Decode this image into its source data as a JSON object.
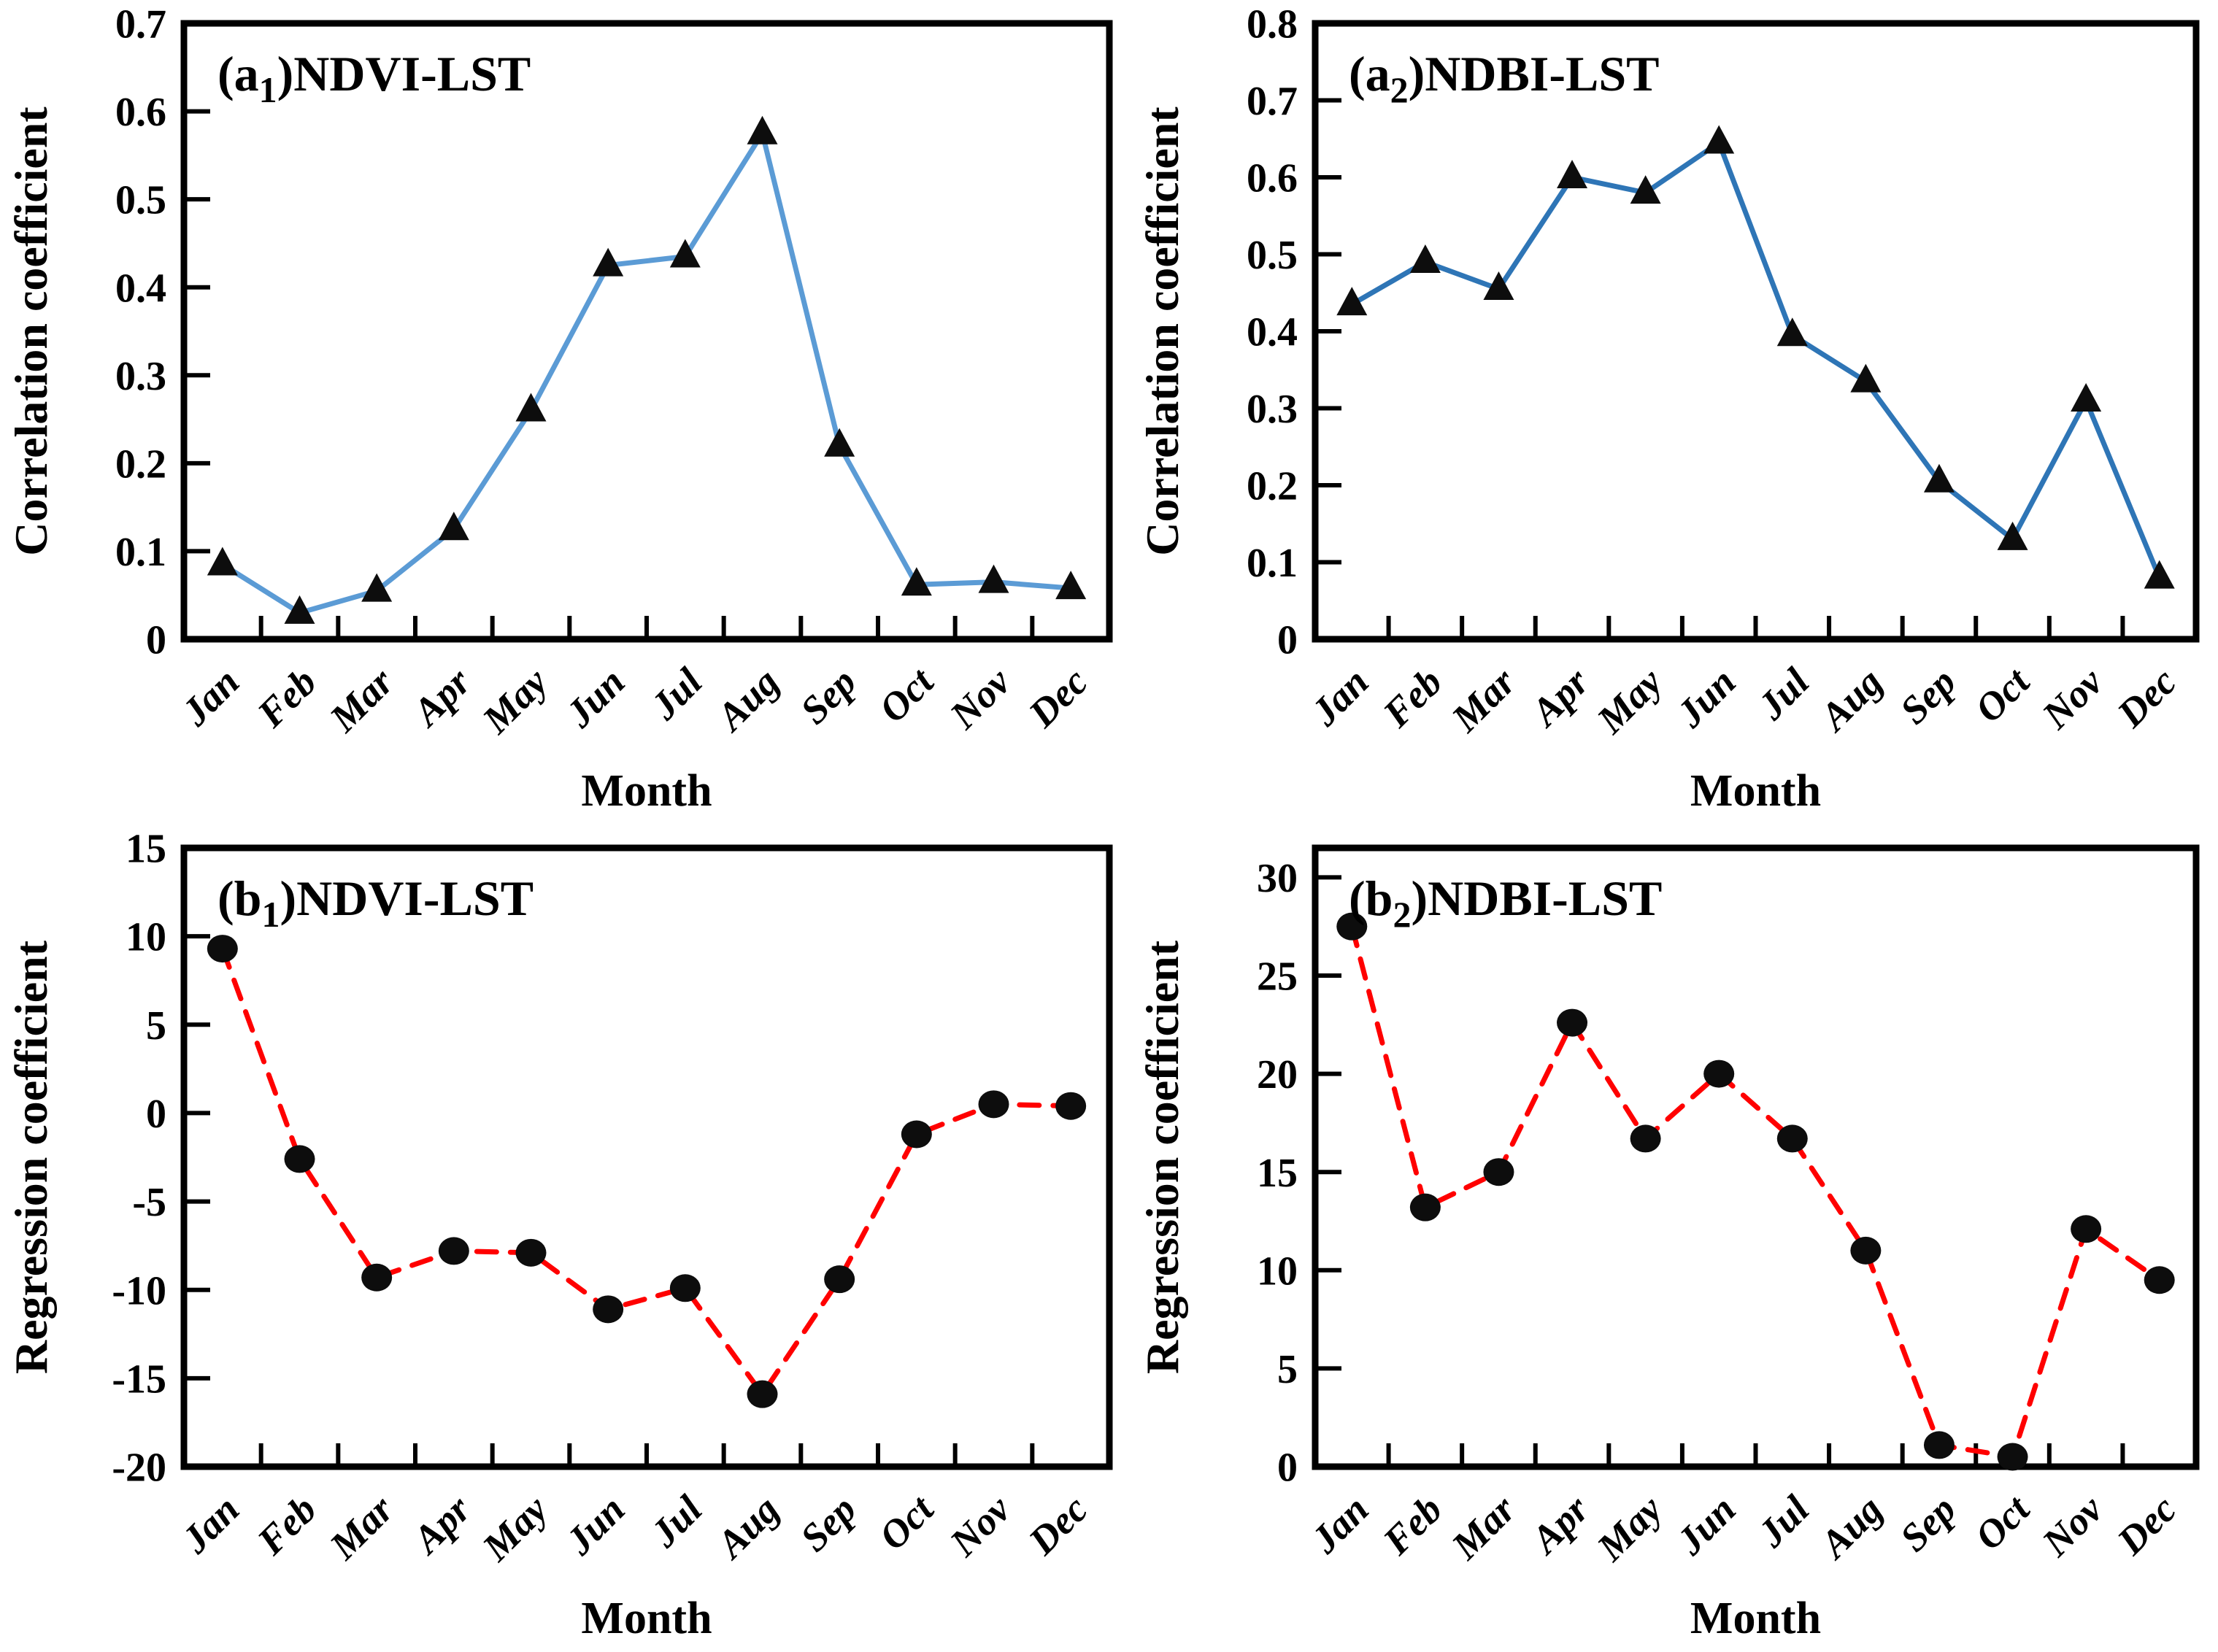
{
  "figure": {
    "xlabel": "Month",
    "months": [
      "Jan",
      "Feb",
      "Mar",
      "Apr",
      "May",
      "Jun",
      "Jul",
      "Aug",
      "Sep",
      "Oct",
      "Nov",
      "Dec"
    ]
  },
  "colors": {
    "line_blue_light": "#5B9BD5",
    "line_blue_dark": "#2E75B6",
    "line_red": "#FF0000",
    "marker_black": "#0d0d0d",
    "axis_black": "#000000"
  },
  "chart_data": [
    {
      "id": "a1",
      "type": "line",
      "panel": {
        "prefix": "(a",
        "sub": "1",
        "suffix": ")NDVI-LST"
      },
      "title": "(a1)NDVI-LST",
      "xlabel": "Month",
      "ylabel": "Correlation coefficient",
      "ylim": [
        0,
        0.7
      ],
      "ytick_values": [
        0,
        0.1,
        0.2,
        0.3,
        0.4,
        0.5,
        0.6,
        0.7
      ],
      "ytick_labels": [
        "0",
        "0.1",
        "0.2",
        "0.3",
        "0.4",
        "0.5",
        "0.6",
        "0.7"
      ],
      "categories": [
        "Jan",
        "Feb",
        "Mar",
        "Apr",
        "May",
        "Jun",
        "Jul",
        "Aug",
        "Sep",
        "Oct",
        "Nov",
        "Dec"
      ],
      "values": [
        0.085,
        0.03,
        0.055,
        0.125,
        0.26,
        0.425,
        0.435,
        0.575,
        0.22,
        0.062,
        0.065,
        0.058
      ],
      "line_color": "#5B9BD5",
      "line_style": "solid",
      "marker": "triangle",
      "legend": "none",
      "grid": "off"
    },
    {
      "id": "a2",
      "type": "line",
      "panel": {
        "prefix": "(a",
        "sub": "2",
        "suffix": ")NDBI-LST"
      },
      "title": "(a2)NDBI-LST",
      "xlabel": "Month",
      "ylabel": "Correlation coefficient",
      "ylim": [
        0,
        0.8
      ],
      "ytick_values": [
        0,
        0.1,
        0.2,
        0.3,
        0.4,
        0.5,
        0.6,
        0.7,
        0.8
      ],
      "ytick_labels": [
        "0",
        "0.1",
        "0.2",
        "0.3",
        "0.4",
        "0.5",
        "0.6",
        "0.7",
        "0.8"
      ],
      "categories": [
        "Jan",
        "Feb",
        "Mar",
        "Apr",
        "May",
        "Jun",
        "Jul",
        "Aug",
        "Sep",
        "Oct",
        "Nov",
        "Dec"
      ],
      "values": [
        0.435,
        0.49,
        0.455,
        0.6,
        0.58,
        0.645,
        0.395,
        0.335,
        0.205,
        0.13,
        0.31,
        0.08
      ],
      "line_color": "#2E75B6",
      "line_style": "solid",
      "marker": "triangle",
      "legend": "none",
      "grid": "off"
    },
    {
      "id": "b1",
      "type": "line",
      "panel": {
        "prefix": "(b",
        "sub": "1",
        "suffix": ")NDVI-LST"
      },
      "title": "(b1)NDVI-LST",
      "xlabel": "Month",
      "ylabel": "Regression coefficient",
      "ylim": [
        -20,
        15
      ],
      "ytick_values": [
        -20,
        -15,
        -10,
        -5,
        0,
        5,
        10,
        15
      ],
      "ytick_labels": [
        "-20",
        "-15",
        "-10",
        "-5",
        "0",
        "5",
        "10",
        "15"
      ],
      "categories": [
        "Jan",
        "Feb",
        "Mar",
        "Apr",
        "May",
        "Jun",
        "Jul",
        "Aug",
        "Sep",
        "Oct",
        "Nov",
        "Dec"
      ],
      "values": [
        9.3,
        -2.6,
        -9.3,
        -7.8,
        -7.9,
        -11.1,
        -9.9,
        -15.9,
        -9.4,
        -1.2,
        0.5,
        0.4
      ],
      "line_color": "#FF0000",
      "line_style": "dashed",
      "marker": "circle",
      "legend": "none",
      "grid": "off"
    },
    {
      "id": "b2",
      "type": "line",
      "panel": {
        "prefix": "(b",
        "sub": "2",
        "suffix": ")NDBI-LST"
      },
      "title": "(b2)NDBI-LST",
      "xlabel": "Month",
      "ylabel": "Regression coefficient",
      "ylim": [
        0,
        31.5
      ],
      "ytick_values": [
        0,
        5,
        10,
        15,
        20,
        25,
        30
      ],
      "ytick_labels": [
        "0",
        "5",
        "10",
        "15",
        "20",
        "25",
        "30"
      ],
      "categories": [
        "Jan",
        "Feb",
        "Mar",
        "Apr",
        "May",
        "Jun",
        "Jul",
        "Aug",
        "Sep",
        "Oct",
        "Nov",
        "Dec"
      ],
      "values": [
        27.5,
        13.2,
        15.0,
        22.6,
        16.7,
        20.0,
        16.7,
        11.0,
        1.1,
        0.5,
        12.1,
        9.5
      ],
      "line_color": "#FF0000",
      "line_style": "dashed",
      "marker": "circle",
      "legend": "none",
      "grid": "off"
    }
  ]
}
